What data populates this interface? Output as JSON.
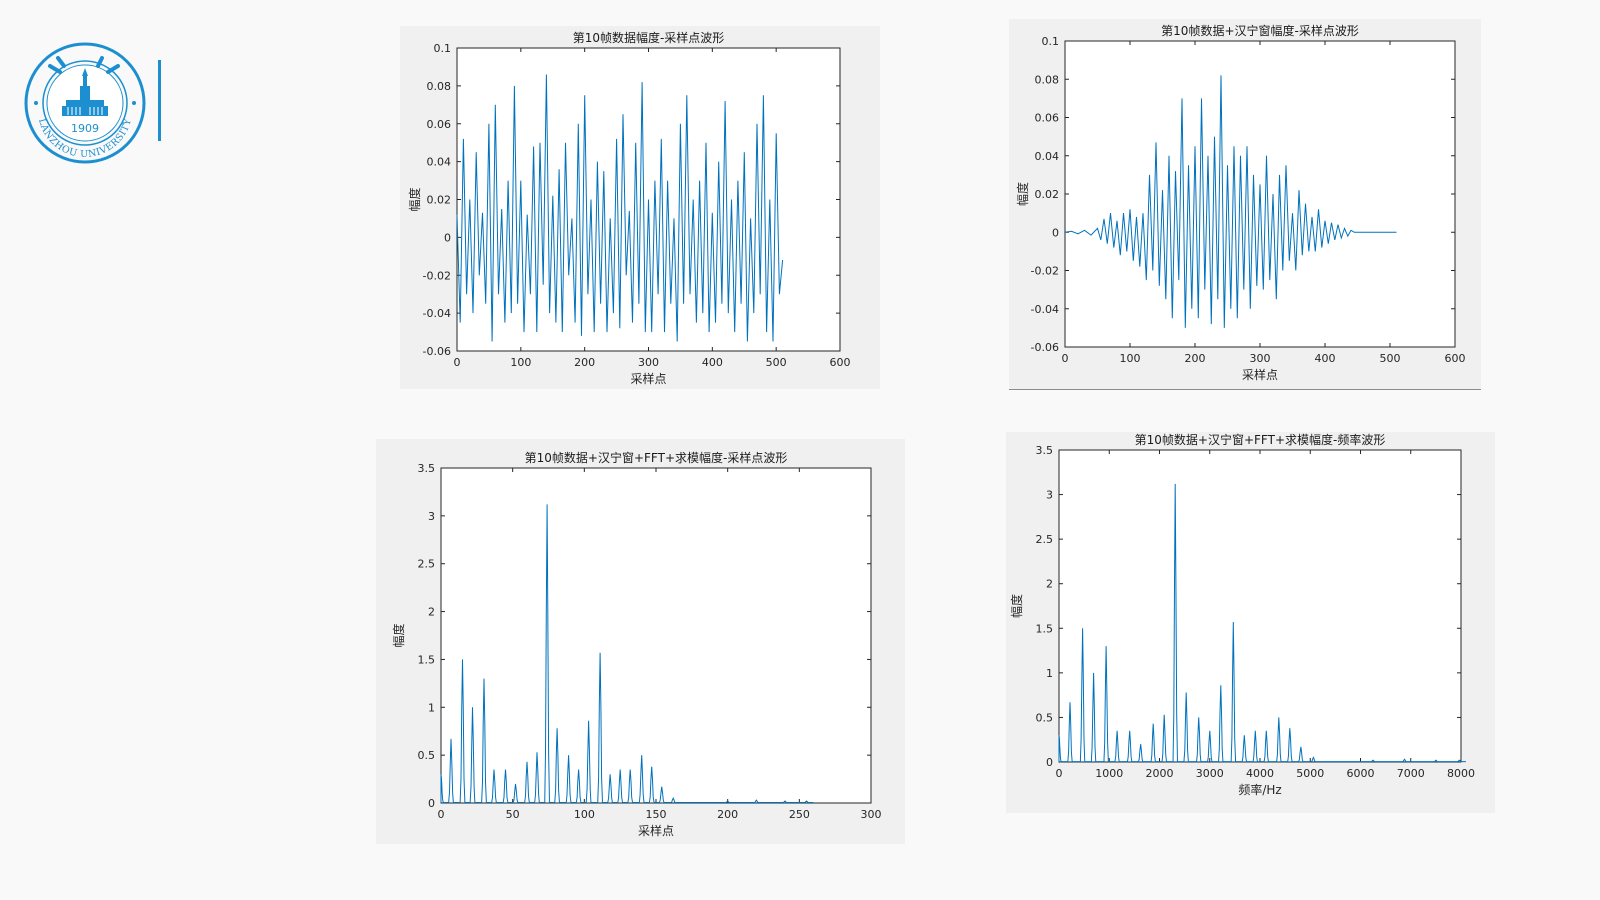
{
  "logo": {
    "year": "1909",
    "ring_text": "LANZHOU   UNIVERSITY",
    "brand_color": "#1c8fd0"
  },
  "chart_data": [
    {
      "type": "line",
      "title": "第10帧数据幅度-采样点波形",
      "xlabel": "采样点",
      "ylabel": "幅度",
      "xlim": [
        0,
        600
      ],
      "ylim": [
        -0.06,
        0.1
      ],
      "xticks": [
        "0",
        "100",
        "200",
        "300",
        "400",
        "500",
        "600"
      ],
      "yticks": [
        "-0.06",
        "-0.04",
        "-0.02",
        "0",
        "0.02",
        "0.04",
        "0.06",
        "0.08",
        "0.1"
      ],
      "x": [
        0,
        5,
        10,
        15,
        20,
        25,
        30,
        35,
        40,
        45,
        50,
        55,
        60,
        65,
        70,
        75,
        80,
        85,
        90,
        95,
        100,
        105,
        110,
        115,
        120,
        125,
        130,
        135,
        140,
        145,
        150,
        155,
        160,
        165,
        170,
        175,
        180,
        185,
        190,
        195,
        200,
        205,
        210,
        215,
        220,
        225,
        230,
        235,
        240,
        245,
        250,
        255,
        260,
        265,
        270,
        275,
        280,
        285,
        290,
        295,
        300,
        305,
        310,
        315,
        320,
        325,
        330,
        335,
        340,
        345,
        350,
        355,
        360,
        365,
        370,
        375,
        380,
        385,
        390,
        395,
        400,
        405,
        410,
        415,
        420,
        425,
        430,
        435,
        440,
        445,
        450,
        455,
        460,
        465,
        470,
        475,
        480,
        485,
        490,
        495,
        500,
        505,
        510
      ],
      "y": [
        0.012,
        -0.045,
        0.052,
        -0.03,
        0.02,
        -0.04,
        0.045,
        -0.02,
        0.013,
        -0.035,
        0.06,
        -0.055,
        0.07,
        -0.03,
        0.015,
        -0.045,
        0.03,
        -0.04,
        0.08,
        -0.035,
        0.03,
        -0.05,
        0.012,
        -0.03,
        0.048,
        -0.05,
        0.05,
        -0.025,
        0.086,
        -0.04,
        0.022,
        -0.045,
        0.036,
        -0.05,
        0.05,
        -0.02,
        0.01,
        -0.045,
        0.06,
        -0.052,
        0.075,
        -0.03,
        0.02,
        -0.05,
        0.04,
        -0.035,
        0.035,
        -0.05,
        0.01,
        -0.04,
        0.052,
        -0.048,
        0.065,
        -0.02,
        0.014,
        -0.045,
        0.05,
        -0.035,
        0.082,
        -0.05,
        0.02,
        -0.05,
        0.03,
        -0.03,
        0.052,
        -0.05,
        0.03,
        -0.035,
        0.01,
        -0.055,
        0.06,
        -0.035,
        0.075,
        -0.03,
        0.02,
        -0.045,
        0.03,
        -0.04,
        0.05,
        -0.05,
        0.013,
        -0.045,
        0.04,
        -0.035,
        0.072,
        -0.04,
        0.02,
        -0.05,
        0.03,
        -0.035,
        0.045,
        -0.055,
        0.01,
        -0.04,
        0.06,
        -0.03,
        0.075,
        -0.05,
        0.02,
        -0.055,
        0.055,
        -0.03,
        -0.012
      ]
    },
    {
      "type": "line",
      "title": "第10帧数据+汉宁窗幅度-采样点波形",
      "xlabel": "采样点",
      "ylabel": "幅度",
      "xlim": [
        0,
        600
      ],
      "ylim": [
        -0.06,
        0.1
      ],
      "xticks": [
        "0",
        "100",
        "200",
        "300",
        "400",
        "500",
        "600"
      ],
      "yticks": [
        "-0.06",
        "-0.04",
        "-0.02",
        "0",
        "0.02",
        "0.04",
        "0.06",
        "0.08",
        "0.1"
      ],
      "x": [
        0,
        10,
        20,
        30,
        40,
        50,
        55,
        60,
        65,
        70,
        75,
        80,
        85,
        90,
        95,
        100,
        105,
        110,
        115,
        120,
        125,
        130,
        135,
        140,
        145,
        150,
        155,
        160,
        165,
        170,
        175,
        180,
        185,
        190,
        195,
        200,
        205,
        210,
        215,
        220,
        225,
        230,
        235,
        240,
        245,
        250,
        255,
        260,
        265,
        270,
        275,
        280,
        285,
        290,
        295,
        300,
        305,
        310,
        315,
        320,
        325,
        330,
        335,
        340,
        345,
        350,
        355,
        360,
        365,
        370,
        375,
        380,
        385,
        390,
        395,
        400,
        405,
        410,
        415,
        420,
        425,
        430,
        435,
        440,
        445,
        450,
        455,
        460,
        465,
        470,
        475,
        480,
        485,
        490,
        495,
        500,
        505,
        510
      ],
      "y": [
        0,
        0.0005,
        -0.0008,
        0.001,
        -0.0015,
        0.002,
        -0.004,
        0.007,
        -0.006,
        0.01,
        -0.008,
        0.006,
        -0.012,
        0.01,
        -0.01,
        0.012,
        -0.015,
        0.008,
        -0.018,
        0.01,
        -0.025,
        0.03,
        -0.02,
        0.047,
        -0.028,
        0.022,
        -0.035,
        0.04,
        -0.045,
        0.032,
        -0.025,
        0.07,
        -0.05,
        0.035,
        -0.04,
        0.045,
        -0.045,
        0.07,
        -0.03,
        0.04,
        -0.048,
        0.05,
        -0.035,
        0.082,
        -0.05,
        0.035,
        -0.04,
        0.045,
        -0.045,
        0.04,
        -0.03,
        0.045,
        -0.04,
        0.03,
        -0.028,
        0.025,
        -0.03,
        0.04,
        -0.025,
        0.02,
        -0.035,
        0.03,
        -0.02,
        0.035,
        -0.015,
        0.01,
        -0.02,
        0.022,
        -0.012,
        0.015,
        -0.01,
        0.008,
        -0.01,
        0.012,
        -0.008,
        0.006,
        -0.006,
        0.005,
        -0.004,
        0.004,
        -0.003,
        0.002,
        -0.002,
        0.001,
        0,
        0,
        0,
        0,
        0,
        0,
        0,
        0,
        0,
        0,
        0,
        0,
        0,
        0
      ]
    },
    {
      "type": "line",
      "title": "第10帧数据+汉宁窗+FFT+求模幅度-采样点波形",
      "xlabel": "采样点",
      "ylabel": "幅度",
      "xlim": [
        0,
        300
      ],
      "ylim": [
        0,
        3.5
      ],
      "xticks": [
        "0",
        "50",
        "100",
        "150",
        "200",
        "250",
        "300"
      ],
      "yticks": [
        "0",
        "0.5",
        "1",
        "1.5",
        "2",
        "2.5",
        "3",
        "3.5"
      ],
      "peaks_x": [
        0,
        7,
        15,
        22,
        30,
        37,
        45,
        52,
        60,
        67,
        74,
        81,
        89,
        96,
        103,
        111,
        118,
        125,
        132,
        140,
        147,
        154,
        162,
        200,
        220,
        240,
        255
      ],
      "peaks_y": [
        0.3,
        0.67,
        1.5,
        1.0,
        1.3,
        0.35,
        0.35,
        0.2,
        0.43,
        0.53,
        3.12,
        0.78,
        0.5,
        0.35,
        0.86,
        1.57,
        0.3,
        0.35,
        0.35,
        0.5,
        0.38,
        0.17,
        0.05,
        0.02,
        0.03,
        0.02,
        0.02
      ]
    },
    {
      "type": "line",
      "title": "第10帧数据+汉宁窗+FFT+求模幅度-频率波形",
      "xlabel": "频率/Hz",
      "ylabel": "幅度",
      "xlim": [
        0,
        8000
      ],
      "ylim": [
        0,
        3.5
      ],
      "xticks": [
        "0",
        "1000",
        "2000",
        "3000",
        "4000",
        "5000",
        "6000",
        "7000",
        "8000"
      ],
      "yticks": [
        "0",
        "0.5",
        "1",
        "1.5",
        "2",
        "2.5",
        "3",
        "3.5"
      ],
      "peaks_x": [
        0,
        219,
        469,
        688,
        938,
        1156,
        1406,
        1625,
        1875,
        2094,
        2313,
        2531,
        2781,
        3000,
        3219,
        3469,
        3688,
        3906,
        4125,
        4375,
        4594,
        4813,
        5063,
        6250,
        6875,
        7500,
        7969
      ],
      "peaks_y": [
        0.3,
        0.67,
        1.5,
        1.0,
        1.3,
        0.35,
        0.35,
        0.2,
        0.43,
        0.53,
        3.12,
        0.78,
        0.5,
        0.35,
        0.86,
        1.57,
        0.3,
        0.35,
        0.35,
        0.5,
        0.38,
        0.17,
        0.05,
        0.02,
        0.03,
        0.02,
        0.02
      ]
    }
  ]
}
